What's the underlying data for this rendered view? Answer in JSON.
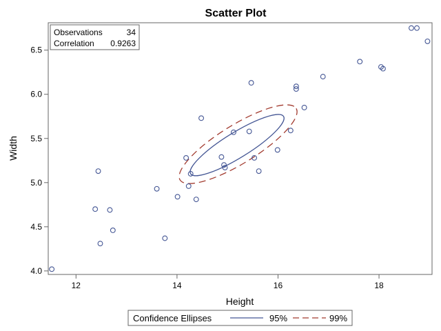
{
  "chart_data": {
    "type": "scatter",
    "title": "Scatter Plot",
    "xlabel": "Height",
    "ylabel": "Width",
    "xlim": [
      11.45,
      19.05
    ],
    "ylim": [
      3.96,
      6.81
    ],
    "xticks": [
      12,
      14,
      16,
      18
    ],
    "yticks": [
      4.0,
      4.5,
      5.0,
      5.5,
      6.0,
      6.5
    ],
    "ytick_labels": [
      "4.0",
      "4.5",
      "5.0",
      "5.5",
      "6.0",
      "6.5"
    ],
    "grid": false,
    "points": [
      {
        "x": 11.52,
        "y": 4.02
      },
      {
        "x": 12.38,
        "y": 4.7
      },
      {
        "x": 12.44,
        "y": 5.13
      },
      {
        "x": 12.48,
        "y": 4.31
      },
      {
        "x": 12.67,
        "y": 4.69
      },
      {
        "x": 12.73,
        "y": 4.46
      },
      {
        "x": 13.6,
        "y": 4.93
      },
      {
        "x": 13.76,
        "y": 4.37
      },
      {
        "x": 14.01,
        "y": 4.84
      },
      {
        "x": 14.18,
        "y": 5.28
      },
      {
        "x": 14.23,
        "y": 4.96
      },
      {
        "x": 14.27,
        "y": 5.1
      },
      {
        "x": 14.38,
        "y": 4.81
      },
      {
        "x": 14.48,
        "y": 5.73
      },
      {
        "x": 14.88,
        "y": 5.29
      },
      {
        "x": 14.93,
        "y": 5.2
      },
      {
        "x": 14.95,
        "y": 5.17
      },
      {
        "x": 15.12,
        "y": 5.57
      },
      {
        "x": 15.43,
        "y": 5.58
      },
      {
        "x": 15.47,
        "y": 6.13
      },
      {
        "x": 15.53,
        "y": 5.28
      },
      {
        "x": 15.62,
        "y": 5.13
      },
      {
        "x": 15.99,
        "y": 5.37
      },
      {
        "x": 16.25,
        "y": 5.59
      },
      {
        "x": 16.36,
        "y": 6.06
      },
      {
        "x": 16.36,
        "y": 6.09
      },
      {
        "x": 16.52,
        "y": 5.85
      },
      {
        "x": 16.89,
        "y": 6.2
      },
      {
        "x": 17.62,
        "y": 6.37
      },
      {
        "x": 18.04,
        "y": 6.31
      },
      {
        "x": 18.08,
        "y": 6.29
      },
      {
        "x": 18.64,
        "y": 6.75
      },
      {
        "x": 18.75,
        "y": 6.75
      },
      {
        "x": 18.96,
        "y": 6.6
      }
    ],
    "stats": [
      {
        "label": "Observations",
        "value": "34"
      },
      {
        "label": "Correlation",
        "value": "0.9263"
      }
    ],
    "ellipses": [
      {
        "name": "95%",
        "style": "solid",
        "color": "#445694",
        "tips": [
          [
            14.27,
            5.1
          ],
          [
            16.11,
            5.75
          ]
        ],
        "minor_ends": [
          [
            15.11,
            5.56
          ],
          [
            15.27,
            5.29
          ]
        ]
      },
      {
        "name": "99%",
        "style": "dashed",
        "color": "#a23a2e",
        "tips": [
          [
            14.06,
            5.03
          ],
          [
            16.36,
            5.84
          ]
        ],
        "minor_ends": [
          [
            15.08,
            5.64
          ],
          [
            15.34,
            5.23
          ]
        ]
      }
    ],
    "legend": {
      "title": "Confidence Ellipses",
      "position": "bottom"
    },
    "marker_color": "#445694"
  }
}
